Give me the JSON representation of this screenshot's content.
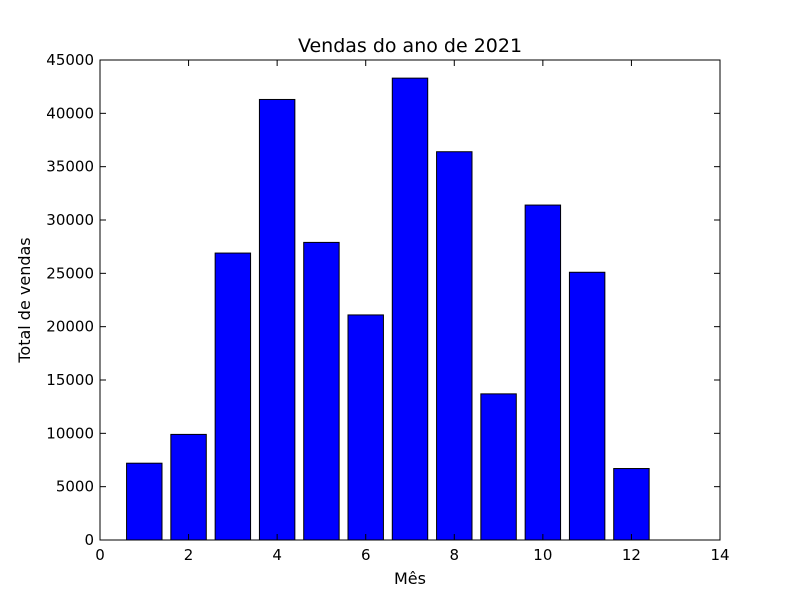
{
  "chart_data": {
    "type": "bar",
    "title": "Vendas do ano de 2021",
    "xlabel": "Mês",
    "ylabel": "Total de vendas",
    "x": [
      1,
      2,
      3,
      4,
      5,
      6,
      7,
      8,
      9,
      10,
      11,
      12
    ],
    "values": [
      7200,
      9900,
      26900,
      41300,
      27900,
      21100,
      43300,
      36400,
      13700,
      31400,
      25100,
      6700
    ],
    "xlim": [
      0,
      14
    ],
    "ylim": [
      0,
      45000
    ],
    "xticks": [
      0,
      2,
      4,
      6,
      8,
      10,
      12,
      14
    ],
    "yticks": [
      0,
      5000,
      10000,
      15000,
      20000,
      25000,
      30000,
      35000,
      40000,
      45000
    ],
    "bar_width": 0.8,
    "bar_color": "#0000ff",
    "edge_color": "#000000",
    "grid": false,
    "legend": "none"
  }
}
